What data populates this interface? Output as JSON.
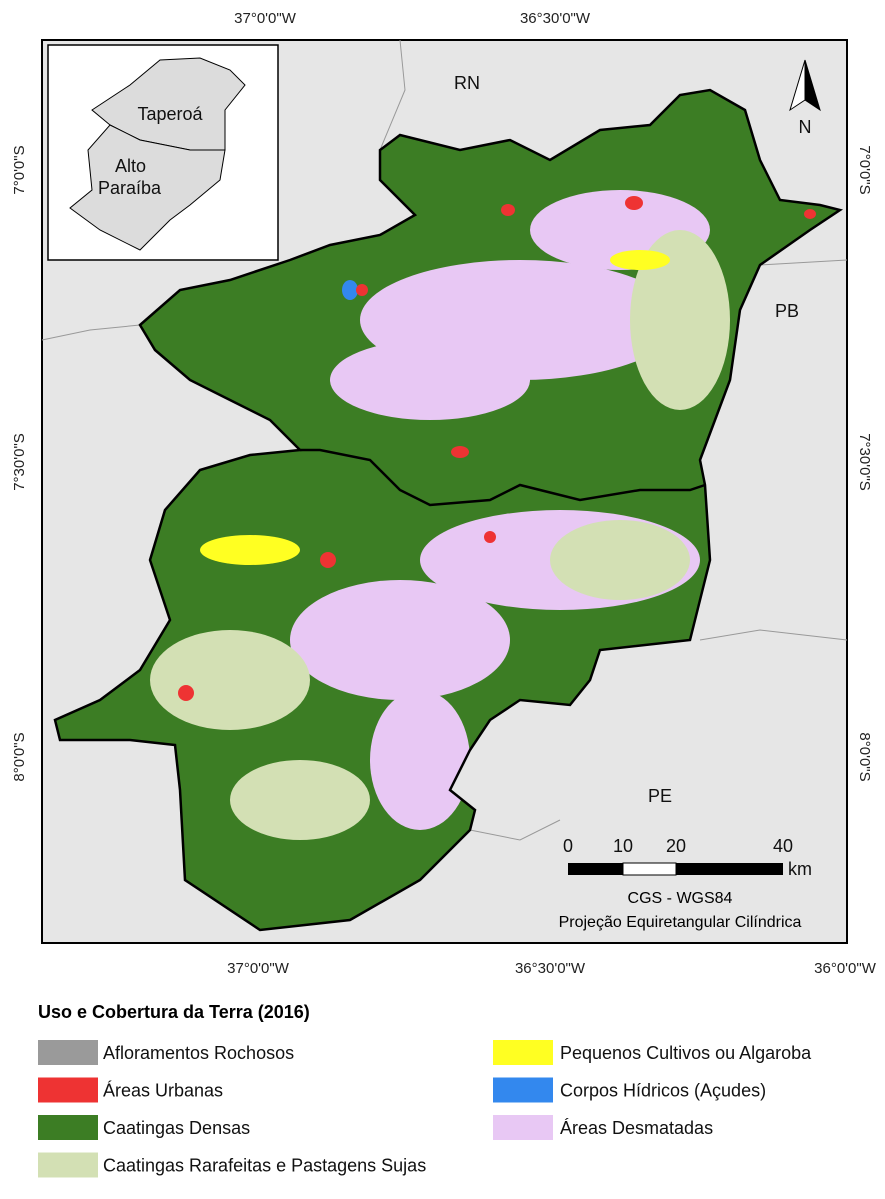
{
  "map": {
    "coordinates": {
      "top": [
        "37°0'0\"W",
        "36°30'0\"W"
      ],
      "bottom": [
        "37°0'0\"W",
        "36°30'0\"W",
        "36°0'0\"W"
      ],
      "left": [
        "7°0'0\"S",
        "7°30'0\"S",
        "8°0'0\"S"
      ],
      "right": [
        "7°0'0\"S",
        "7°30'0\"S",
        "8°0'0\"S"
      ]
    },
    "inset_labels": [
      "Taperoá",
      "Alto\nParaíba"
    ],
    "state_labels": [
      "RN",
      "PB",
      "PE"
    ],
    "north": "N",
    "scale": {
      "labels": [
        "0",
        "10",
        "20",
        "40"
      ],
      "unit": "km"
    },
    "datum": "CGS - WGS84",
    "projection": "Projeção Equiretangular Cilíndrica"
  },
  "legend": {
    "title": "Uso e Cobertura da Terra (2016)",
    "items": [
      {
        "label": "Afloramentos Rochosos",
        "color": "#9a9a9a"
      },
      {
        "label": "Áreas Urbanas",
        "color": "#ee3333"
      },
      {
        "label": "Caatingas Densas",
        "color": "#3c7d24"
      },
      {
        "label": "Caatingas Rarafeitas e Pastagens Sujas",
        "color": "#d3e0b4"
      },
      {
        "label": "Pequenos Cultivos ou Algaroba",
        "color": "#ffff22"
      },
      {
        "label": "Corpos Hídricos (Açudes)",
        "color": "#3388ee"
      },
      {
        "label": "Áreas Desmatadas",
        "color": "#e8c8f4"
      }
    ]
  }
}
